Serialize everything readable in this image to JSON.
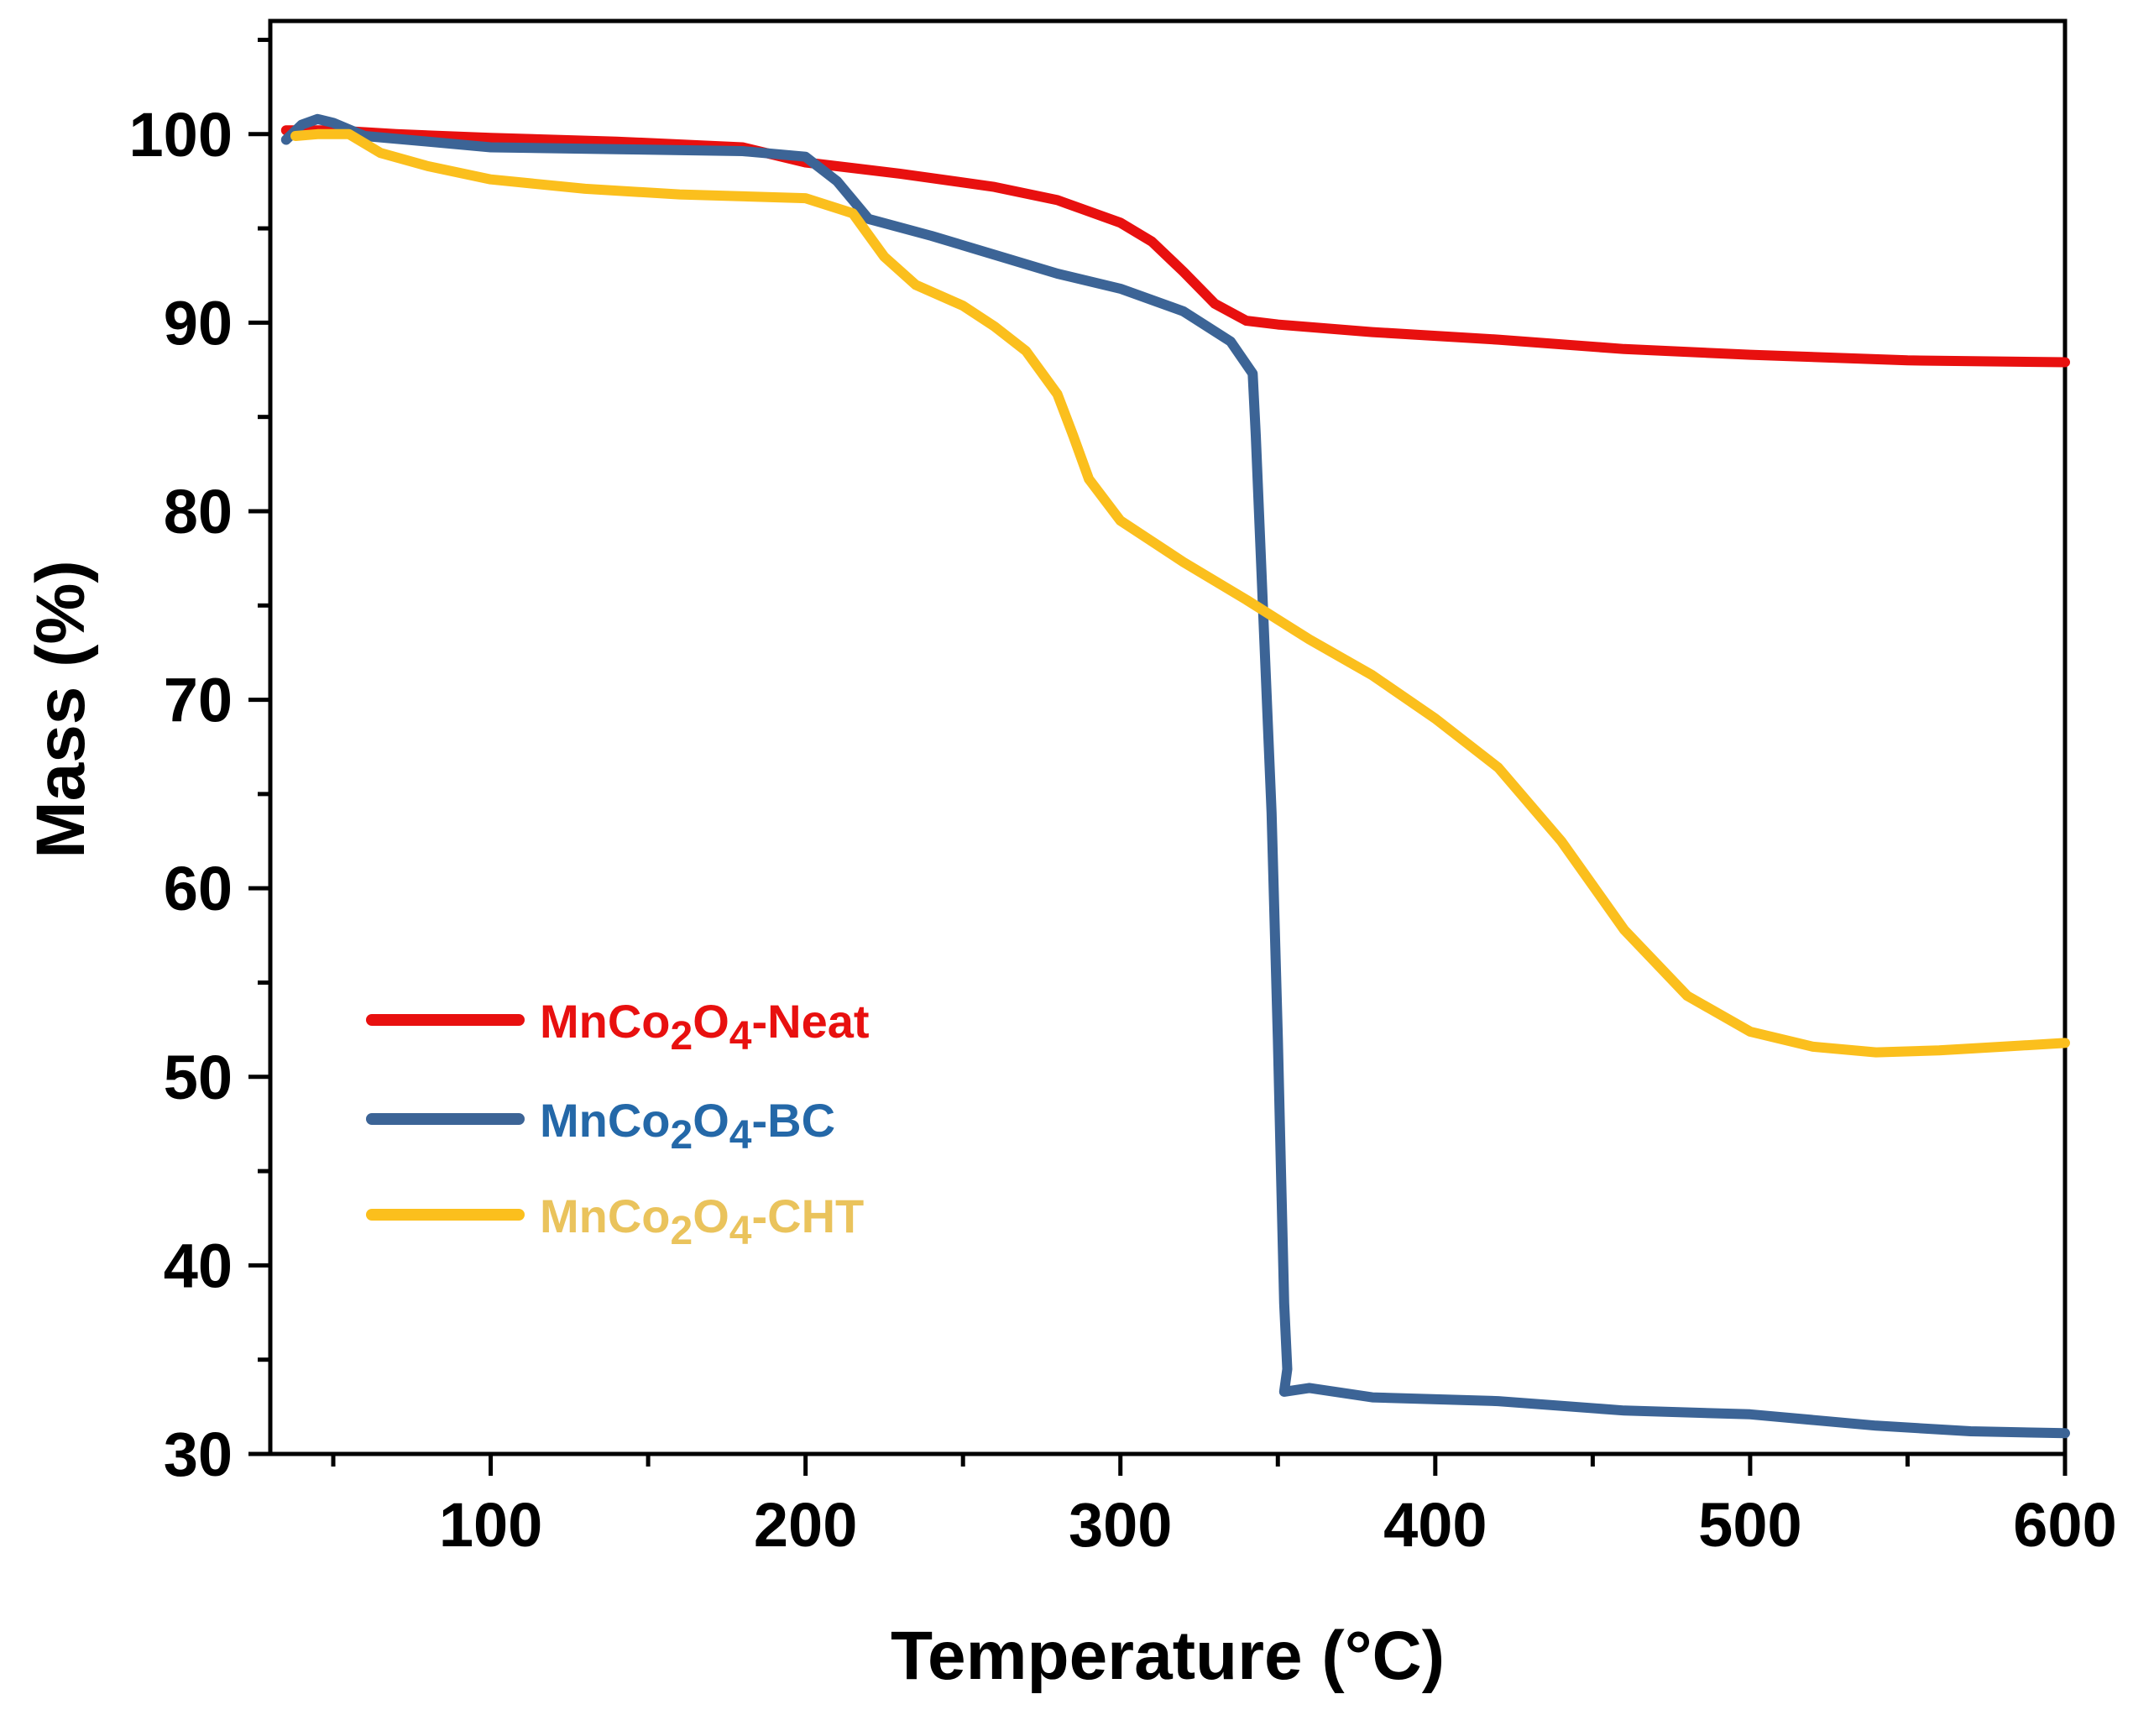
{
  "chart_data": {
    "type": "line",
    "title": "",
    "xlabel": "Temperature (°C)",
    "ylabel": "Mass (%)",
    "xlim": [
      30,
      600
    ],
    "ylim": [
      30,
      106
    ],
    "x_ticks": [
      100,
      200,
      300,
      400,
      500,
      600
    ],
    "x_minor_ticks": [
      50,
      150,
      250,
      350,
      450,
      550
    ],
    "y_ticks": [
      30,
      40,
      50,
      60,
      70,
      80,
      90,
      100
    ],
    "y_minor_ticks": [
      35,
      45,
      55,
      65,
      75,
      85,
      95,
      105
    ],
    "x_tick_labels": [
      "100",
      "200",
      "300",
      "400",
      "500",
      "600"
    ],
    "y_tick_labels": [
      "30",
      "40",
      "50",
      "60",
      "70",
      "80",
      "90",
      "100"
    ],
    "legend_position": "center-left",
    "series": [
      {
        "name": "MnCo2O4-Neat",
        "label_main": "MnCo",
        "label_sub1": "2",
        "label_mid": "O",
        "label_sub2": "4",
        "label_suffix": "-Neat",
        "color": "#e8100f",
        "text_color": "#e8100f",
        "points": [
          [
            35,
            100.2
          ],
          [
            50,
            100.2
          ],
          [
            70,
            100.0
          ],
          [
            100,
            99.8
          ],
          [
            140,
            99.6
          ],
          [
            180,
            99.3
          ],
          [
            200,
            98.5
          ],
          [
            230,
            97.9
          ],
          [
            260,
            97.2
          ],
          [
            280,
            96.5
          ],
          [
            300,
            95.3
          ],
          [
            310,
            94.3
          ],
          [
            320,
            92.7
          ],
          [
            330,
            91.0
          ],
          [
            340,
            90.1
          ],
          [
            350,
            89.9
          ],
          [
            380,
            89.5
          ],
          [
            420,
            89.1
          ],
          [
            460,
            88.6
          ],
          [
            500,
            88.3
          ],
          [
            550,
            88.0
          ],
          [
            600,
            87.9
          ]
        ]
      },
      {
        "name": "MnCo2O4-BC",
        "label_main": "MnCo",
        "label_sub1": "2",
        "label_mid": "O",
        "label_sub2": "4",
        "label_suffix": "-BC",
        "color": "#3c6496",
        "text_color": "#2468a8",
        "points": [
          [
            35,
            99.7
          ],
          [
            40,
            100.5
          ],
          [
            45,
            100.8
          ],
          [
            50,
            100.6
          ],
          [
            60,
            99.9
          ],
          [
            80,
            99.6
          ],
          [
            100,
            99.3
          ],
          [
            140,
            99.2
          ],
          [
            180,
            99.1
          ],
          [
            200,
            98.8
          ],
          [
            210,
            97.5
          ],
          [
            220,
            95.5
          ],
          [
            240,
            94.6
          ],
          [
            260,
            93.6
          ],
          [
            280,
            92.6
          ],
          [
            300,
            91.8
          ],
          [
            320,
            90.6
          ],
          [
            335,
            89.0
          ],
          [
            342,
            87.3
          ],
          [
            343,
            84.0
          ],
          [
            345,
            76.0
          ],
          [
            348,
            64.0
          ],
          [
            350,
            52.0
          ],
          [
            351,
            45.0
          ],
          [
            352,
            38.0
          ],
          [
            353,
            34.5
          ],
          [
            352,
            33.3
          ],
          [
            360,
            33.5
          ],
          [
            380,
            33.0
          ],
          [
            420,
            32.8
          ],
          [
            460,
            32.3
          ],
          [
            500,
            32.1
          ],
          [
            540,
            31.5
          ],
          [
            570,
            31.2
          ],
          [
            600,
            31.1
          ]
        ]
      },
      {
        "name": "MnCo2O4-CHT",
        "label_main": "MnCo",
        "label_sub1": "2",
        "label_mid": "O",
        "label_sub2": "4",
        "label_suffix": "-CHT",
        "color": "#fbbf1d",
        "text_color": "#eac35c",
        "points": [
          [
            38,
            99.9
          ],
          [
            45,
            100.0
          ],
          [
            55,
            100.0
          ],
          [
            65,
            99.0
          ],
          [
            80,
            98.3
          ],
          [
            100,
            97.6
          ],
          [
            130,
            97.1
          ],
          [
            160,
            96.8
          ],
          [
            200,
            96.6
          ],
          [
            215,
            95.8
          ],
          [
            225,
            93.5
          ],
          [
            235,
            92.0
          ],
          [
            250,
            90.9
          ],
          [
            260,
            89.8
          ],
          [
            270,
            88.5
          ],
          [
            280,
            86.2
          ],
          [
            285,
            84.0
          ],
          [
            290,
            81.7
          ],
          [
            300,
            79.5
          ],
          [
            320,
            77.3
          ],
          [
            340,
            75.3
          ],
          [
            360,
            73.2
          ],
          [
            380,
            71.3
          ],
          [
            400,
            69.0
          ],
          [
            420,
            66.4
          ],
          [
            440,
            62.5
          ],
          [
            460,
            57.8
          ],
          [
            480,
            54.3
          ],
          [
            500,
            52.4
          ],
          [
            520,
            51.6
          ],
          [
            540,
            51.3
          ],
          [
            560,
            51.4
          ],
          [
            580,
            51.6
          ],
          [
            600,
            51.8
          ]
        ]
      }
    ]
  }
}
